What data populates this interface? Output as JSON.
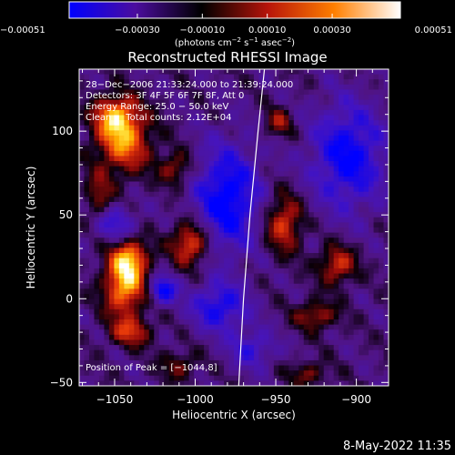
{
  "chart_data": {
    "type": "heatmap",
    "title": "Reconstructed RHESSI Image",
    "xlabel": "Heliocentric X (arcsec)",
    "ylabel": "Heliocentric Y (arcsec)",
    "xlim": [
      -1072,
      -880
    ],
    "ylim": [
      -52,
      137
    ],
    "x_ticks": [
      -1050,
      -1000,
      -950,
      -900
    ],
    "x_tick_labels": [
      "−1050",
      "−1000",
      "−950",
      "−900"
    ],
    "y_ticks": [
      -50,
      0,
      50,
      100
    ],
    "y_tick_labels": [
      "−50",
      "0",
      "50",
      "100"
    ],
    "colorbar": {
      "range": [
        -0.00051,
        0.00051
      ],
      "ticks": [
        -0.00051,
        -0.0003,
        -0.0001,
        0.0001,
        0.0003,
        0.00051
      ],
      "tick_labels": [
        "−0.00051",
        "−0.00030",
        "−0.00010",
        "0.00010",
        "0.00030",
        "0.00051"
      ],
      "unit_parts": [
        "(photons cm",
        "−2",
        " s",
        "−1",
        " asec",
        "−2",
        ")"
      ],
      "colors": [
        "#0000ff",
        "#4b0d9e",
        "#000000",
        "#b7140a",
        "#ff7f00",
        "#ffffff"
      ]
    },
    "grid": false,
    "annotations": [
      "28−Dec−2006 21:33:24.000 to 21:39:24.000",
      "Detectors: 3F 4F 5F 6F 7F 8F, Att 0",
      "Energy Range: 25.0 − 50.0 keV",
      "Clean     Total counts: 2.12E+04"
    ],
    "peak_label": "Position of Peak = [−1044,8]",
    "peak_position": [
      -1044,
      8
    ],
    "sources": [
      {
        "x": -1045,
        "y": 95,
        "sx": 12,
        "sy": 14,
        "amp": 0.00046
      },
      {
        "x": -1050,
        "y": 110,
        "sx": 9,
        "sy": 8,
        "amp": 0.00032
      },
      {
        "x": -1044,
        "y": 8,
        "sx": 9,
        "sy": 13,
        "amp": 0.00051
      },
      {
        "x": -1040,
        "y": 25,
        "sx": 8,
        "sy": 8,
        "amp": 0.00036
      },
      {
        "x": -1003,
        "y": 33,
        "sx": 8,
        "sy": 9,
        "amp": 0.00042
      },
      {
        "x": -1012,
        "y": 78,
        "sx": 7,
        "sy": 7,
        "amp": 0.00026
      },
      {
        "x": -945,
        "y": 45,
        "sx": 8,
        "sy": 12,
        "amp": 0.00036
      },
      {
        "x": -948,
        "y": 105,
        "sx": 6,
        "sy": 6,
        "amp": 0.00024
      },
      {
        "x": -912,
        "y": 20,
        "sx": 8,
        "sy": 8,
        "amp": 0.00034
      },
      {
        "x": -925,
        "y": -10,
        "sx": 9,
        "sy": 6,
        "amp": 0.00028
      },
      {
        "x": -1040,
        "y": -20,
        "sx": 9,
        "sy": 6,
        "amp": 0.0003
      },
      {
        "x": -1060,
        "y": 60,
        "sx": 6,
        "sy": 10,
        "amp": 0.00024
      },
      {
        "x": -1010,
        "y": -40,
        "sx": 8,
        "sy": 6,
        "amp": 0.0002
      },
      {
        "x": -930,
        "y": -45,
        "sx": 8,
        "sy": 5,
        "amp": 0.00022
      }
    ],
    "negative_regions": [
      {
        "x": -980,
        "y": 60,
        "sx": 14,
        "sy": 22,
        "amp": -0.00042
      },
      {
        "x": -905,
        "y": 85,
        "sx": 16,
        "sy": 22,
        "amp": -0.00038
      },
      {
        "x": -1050,
        "y": 45,
        "sx": 10,
        "sy": 8,
        "amp": -0.00025
      },
      {
        "x": -985,
        "y": -5,
        "sx": 12,
        "sy": 10,
        "amp": -0.00034
      },
      {
        "x": -1020,
        "y": 5,
        "sx": 6,
        "sy": 6,
        "amp": -0.00038
      },
      {
        "x": -965,
        "y": -30,
        "sx": 10,
        "sy": 8,
        "amp": -0.00024
      }
    ],
    "limb_curve": [
      [
        -957,
        137
      ],
      [
        -961,
        100
      ],
      [
        -966,
        50
      ],
      [
        -970,
        0
      ],
      [
        -973,
        -52
      ]
    ]
  },
  "footer": {
    "timestamp": "8-May-2022 11:35"
  }
}
